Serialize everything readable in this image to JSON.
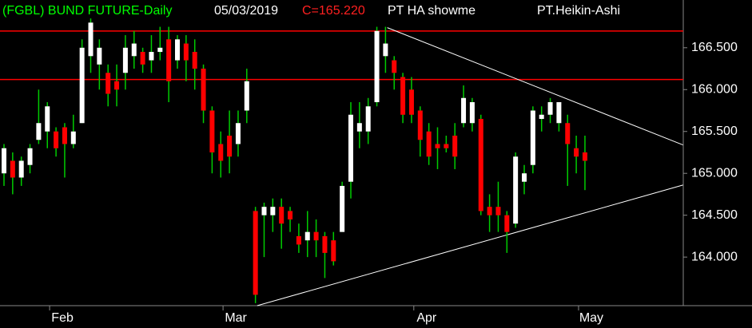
{
  "chart_data": {
    "type": "candlestick",
    "header": {
      "symbol": "(FGBL) BUND FUTURE-Daily",
      "date": "05/03/2019",
      "close_label": "C=165.220",
      "study": "PT HA showme",
      "indicator": "PT.Heikin-Ashi"
    },
    "categories": [
      null,
      null,
      null,
      null,
      null,
      null,
      "Feb",
      null,
      null,
      null,
      null,
      null,
      null,
      null,
      null,
      null,
      null,
      null,
      null,
      null,
      null,
      null,
      null,
      null,
      null,
      null,
      "Mar",
      null,
      null,
      null,
      null,
      null,
      null,
      null,
      null,
      null,
      null,
      null,
      null,
      null,
      null,
      null,
      null,
      null,
      null,
      null,
      null,
      null,
      "Apr",
      null,
      null,
      null,
      null,
      null,
      null,
      null,
      null,
      null,
      null,
      null,
      null,
      null,
      null,
      null,
      null,
      null,
      null,
      "May"
    ],
    "open": [
      165.0,
      165.15,
      164.95,
      165.1,
      165.4,
      165.5,
      165.5,
      165.55,
      165.35,
      165.6,
      166.4,
      166.3,
      166.2,
      166.1,
      166.2,
      166.4,
      166.45,
      166.35,
      166.45,
      166.6,
      166.35,
      166.55,
      166.45,
      166.25,
      165.75,
      165.35,
      165.45,
      165.35,
      165.75,
      164.55,
      164.5,
      164.5,
      164.6,
      164.55,
      164.25,
      164.2,
      164.3,
      164.25,
      164.2,
      164.3,
      164.9,
      165.5,
      165.5,
      165.85,
      166.4,
      166.35,
      166.15,
      166.0,
      165.75,
      165.5,
      165.35,
      165.35,
      165.45,
      165.6,
      165.6,
      165.65,
      164.6,
      164.6,
      164.5,
      164.4,
      164.9,
      165.1,
      165.65,
      165.7,
      165.6,
      165.6,
      165.3,
      165.25
    ],
    "high": [
      165.35,
      165.25,
      165.2,
      165.35,
      166.0,
      165.85,
      165.55,
      165.6,
      165.7,
      166.6,
      166.85,
      166.6,
      166.3,
      166.3,
      166.65,
      166.7,
      166.5,
      166.65,
      166.75,
      166.75,
      166.65,
      166.65,
      166.6,
      166.3,
      165.8,
      165.5,
      165.75,
      165.75,
      166.25,
      164.6,
      164.65,
      164.7,
      164.7,
      164.6,
      164.4,
      164.55,
      164.45,
      164.3,
      164.3,
      164.9,
      165.85,
      165.85,
      165.9,
      166.75,
      166.75,
      166.4,
      166.2,
      166.15,
      165.8,
      165.6,
      165.55,
      165.45,
      165.6,
      166.05,
      165.9,
      165.7,
      164.75,
      164.9,
      164.55,
      165.25,
      165.1,
      165.8,
      165.8,
      165.9,
      165.85,
      165.7,
      165.45,
      165.45
    ],
    "low": [
      164.85,
      164.75,
      164.85,
      165.0,
      165.35,
      165.3,
      165.2,
      164.95,
      165.3,
      165.6,
      166.2,
      166.0,
      165.8,
      165.8,
      166.0,
      166.25,
      166.2,
      166.2,
      166.35,
      165.85,
      166.25,
      166.1,
      166.0,
      165.6,
      165.0,
      164.95,
      165.0,
      165.2,
      165.6,
      163.45,
      164.0,
      164.3,
      164.1,
      164.3,
      164.05,
      164.0,
      164.0,
      163.75,
      163.9,
      164.3,
      164.7,
      165.3,
      165.35,
      165.8,
      166.2,
      166.0,
      165.6,
      165.6,
      165.2,
      165.1,
      165.05,
      165.25,
      165.05,
      165.55,
      165.5,
      164.5,
      164.3,
      164.3,
      164.05,
      164.35,
      164.75,
      165.0,
      165.5,
      165.6,
      165.5,
      164.85,
      165.0,
      164.8
    ],
    "close": [
      165.3,
      164.95,
      165.15,
      165.3,
      165.6,
      165.8,
      165.3,
      165.35,
      165.5,
      166.5,
      166.8,
      166.5,
      165.95,
      166.0,
      166.5,
      166.55,
      166.3,
      166.45,
      166.5,
      166.1,
      166.6,
      166.35,
      166.25,
      165.75,
      165.25,
      165.15,
      165.2,
      165.6,
      166.1,
      163.55,
      164.6,
      164.6,
      164.4,
      164.45,
      164.15,
      164.3,
      164.2,
      164.05,
      163.95,
      164.85,
      165.7,
      165.6,
      165.8,
      166.7,
      166.55,
      166.2,
      165.7,
      165.7,
      165.4,
      165.2,
      165.3,
      165.3,
      165.2,
      165.9,
      165.85,
      164.55,
      164.5,
      164.5,
      164.3,
      165.2,
      165.0,
      165.75,
      165.7,
      165.85,
      165.85,
      165.35,
      165.2,
      165.15
    ],
    "up_color": "#ffffff",
    "down_color": "#ff0000",
    "wick_color": "#00cc00",
    "levels": [
      166.7,
      166.12
    ],
    "level_color": "#ff0000",
    "trendlines": [
      {
        "x": [
          29.2,
          78.3
        ],
        "y": [
          163.42,
          164.86
        ]
      },
      {
        "x": [
          44.2,
          78.3
        ],
        "y": [
          166.74,
          165.34
        ]
      }
    ],
    "trendline_color": "#ffffff",
    "ylim": [
      163.42,
      167.07
    ],
    "yticks": [
      {
        "value": 164.0,
        "label": "164.000"
      },
      {
        "value": 164.5,
        "label": "164.500"
      },
      {
        "value": 165.0,
        "label": "165.000"
      },
      {
        "value": 165.5,
        "label": "165.500"
      },
      {
        "value": 166.0,
        "label": "166.000"
      },
      {
        "value": 166.5,
        "label": "166.500"
      }
    ]
  }
}
